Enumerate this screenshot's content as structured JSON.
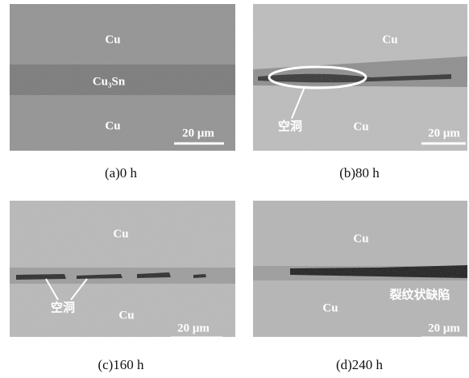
{
  "panels": [
    {
      "labels": [
        "Cu",
        "Cu₃Sn",
        "Cu"
      ],
      "scale_bar": "20 μm",
      "caption": "(a)0 h"
    },
    {
      "labels": [
        "Cu",
        "空洞",
        "Cu"
      ],
      "scale_bar": "20 μm",
      "caption": "(b)80 h"
    },
    {
      "labels": [
        "Cu",
        "空洞",
        "Cu"
      ],
      "scale_bar": "20 μm",
      "caption": "(c)160 h"
    },
    {
      "labels": [
        "Cu",
        "裂纹状缺陷",
        "Cu"
      ],
      "scale_bar": "20 μm",
      "caption": "(d)240 h"
    }
  ]
}
